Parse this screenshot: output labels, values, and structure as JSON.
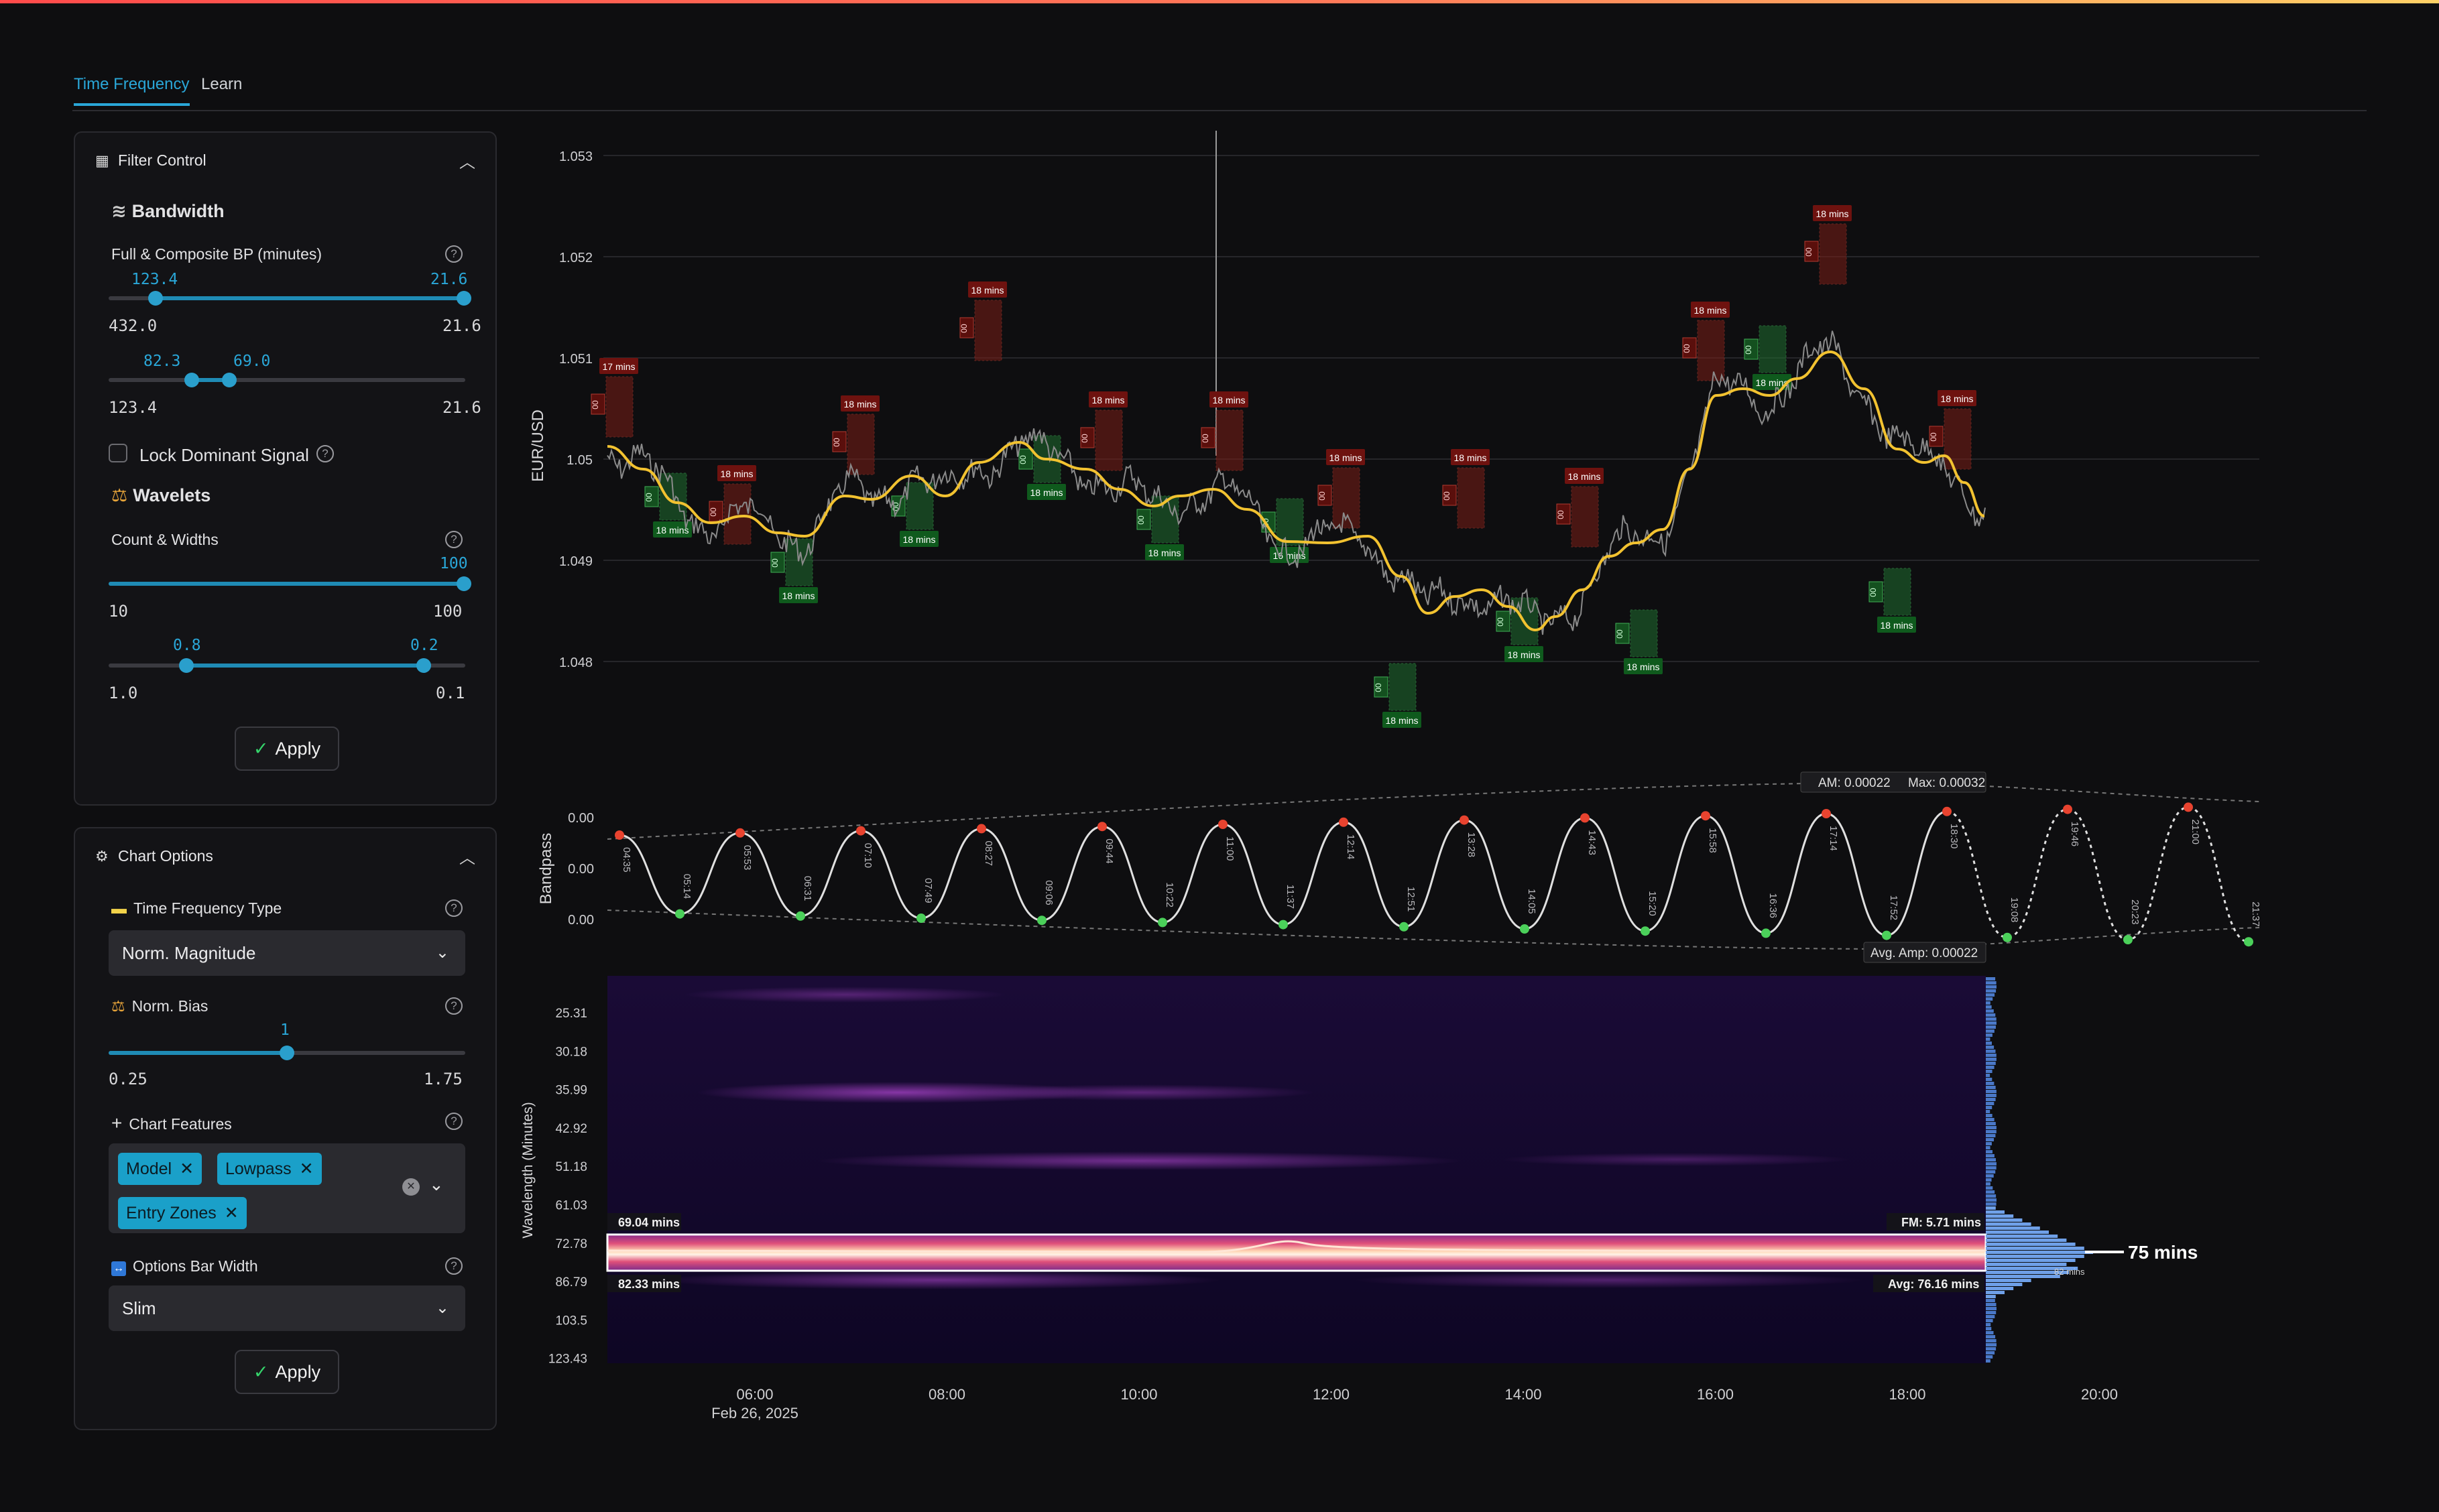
{
  "tabs": [
    {
      "label": "Time Frequency",
      "active": true
    },
    {
      "label": "Learn",
      "active": false
    }
  ],
  "filter_control": {
    "title": "Filter Control",
    "bandwidth_title": "Bandwidth",
    "full_composite_label": "Full & Composite BP (minutes)",
    "slider1": {
      "low_value": "123.4",
      "high_value": "21.6",
      "min": "432.0",
      "max": "21.6"
    },
    "slider2": {
      "low_value": "82.3",
      "high_value": "69.0",
      "min": "123.4",
      "max": "21.6"
    },
    "lock_label": "Lock Dominant Signal",
    "wavelets_title": "Wavelets",
    "count_widths_label": "Count & Widths",
    "slider3": {
      "value": "100",
      "min": "10",
      "max": "100"
    },
    "slider4": {
      "low_value": "0.8",
      "high_value": "0.2",
      "min": "1.0",
      "max": "0.1"
    },
    "apply_label": "Apply"
  },
  "chart_options": {
    "title": "Chart Options",
    "tf_type_label": "Time Frequency Type",
    "tf_type_value": "Norm. Magnitude",
    "norm_bias_label": "Norm. Bias",
    "norm_bias": {
      "value": "1",
      "min": "0.25",
      "max": "1.75"
    },
    "features_label": "Chart Features",
    "features": [
      "Model",
      "Lowpass",
      "Entry Zones"
    ],
    "bar_width_label": "Options Bar Width",
    "bar_width_value": "Slim",
    "apply_label": "Apply"
  },
  "price_chart": {
    "ylabel": "EUR/USD",
    "yticks": [
      "1.053",
      "1.052",
      "1.051",
      "1.05",
      "1.049",
      "1.048"
    ],
    "zone_red_label": "18 mins",
    "zone_red_first_label": "17 mins",
    "zone_green_label": "18 mins",
    "zone_green_alt_label": "16 mins",
    "zone_glyph": "00"
  },
  "bandpass_chart": {
    "ylabel": "Bandpass",
    "yticks": [
      "0.00",
      "0.00",
      "0.00"
    ],
    "am_label": "AM: 0.00022",
    "max_label": "Max: 0.00032",
    "avg_amp_label": "Avg. Amp: 0.00022",
    "turning_times": [
      "04:35",
      "05:14",
      "05:53",
      "06:31",
      "07:10",
      "07:49",
      "08:27",
      "09:06",
      "09:44",
      "10:22",
      "11:00",
      "11:37",
      "12:14",
      "12:51",
      "13:28",
      "14:05",
      "14:43",
      "15:20",
      "15:58",
      "16:36",
      "17:14",
      "17:52",
      "18:30",
      "19:08",
      "19:46",
      "20:23",
      "21:00",
      "21:37"
    ]
  },
  "spectrogram": {
    "ylabel": "Wavelength (Minutes)",
    "yticks": [
      "25.31",
      "30.18",
      "35.99",
      "42.92",
      "51.18",
      "61.03",
      "72.78",
      "86.79",
      "103.5",
      "123.43"
    ],
    "band_high_label": "69.04 mins",
    "band_low_label": "82.33 mins",
    "fm_label": "FM: 5.71 mins",
    "avg_label": "Avg: 76.16 mins",
    "dominant_label": "75 mins",
    "secondary_label": "82 mins"
  },
  "x_axis": {
    "ticks": [
      "06:00",
      "08:00",
      "10:00",
      "12:00",
      "14:00",
      "16:00",
      "18:00",
      "20:00"
    ],
    "date_label": "Feb 26, 2025"
  },
  "colors": {
    "accent": "#2aa7d8",
    "bull_zone": "#1f6e2f",
    "bear_zone": "#7a1d17",
    "model_line": "#f2c230",
    "price_line": "#8a8a8a"
  },
  "icons": {
    "filter": "grid-icon",
    "bandwidth": "waves-icon",
    "wavelets": "scale-icon",
    "chart_options": "gear-icon",
    "tf_type": "card-icon",
    "norm_bias": "scale-icon",
    "features": "plus-icon",
    "bar_width": "arrows-icon"
  }
}
